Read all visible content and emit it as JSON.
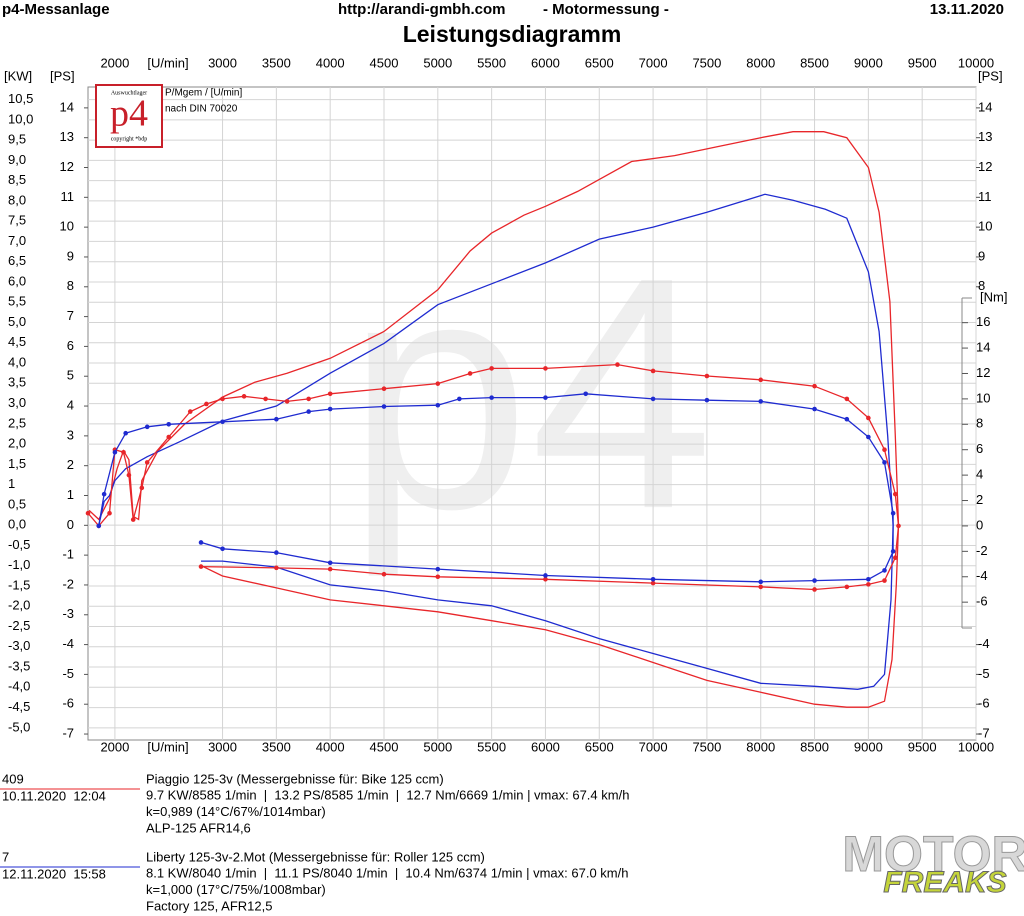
{
  "chart_data": {
    "type": "line",
    "title": "Leistungsdiagramm",
    "header": {
      "left": "p4-Messanlage",
      "url": "http://arandi-gmbh.com",
      "subject": "- Motormessung -",
      "date": "13.11.2020"
    },
    "logo": {
      "top": "Auswuchtlager",
      "mark": "p4",
      "bottom": "copyright *bdp"
    },
    "notes": [
      "P/Mgem / [U/min]",
      "nach DIN 70020"
    ],
    "watermark": "p4",
    "brand": [
      "MOTOR",
      "FREAKS"
    ],
    "x_label": "[U/min]",
    "xlim": [
      1750,
      10000
    ],
    "xticks": [
      2000,
      3000,
      3500,
      4000,
      4500,
      5000,
      5500,
      6000,
      6500,
      7000,
      7500,
      8000,
      8500,
      9000,
      9500,
      10000
    ],
    "grid": true,
    "kw_axis": {
      "label": "[KW]",
      "lim": [
        -5.3,
        10.81
      ],
      "ticks": [
        {
          "value": 10.5,
          "label": "10,5"
        },
        {
          "value": 10,
          "label": "10,0"
        },
        {
          "value": 9.5,
          "label": "9,5"
        },
        {
          "value": 9,
          "label": "9,0"
        },
        {
          "value": 8.5,
          "label": "8,5"
        },
        {
          "value": 8,
          "label": "8,0"
        },
        {
          "value": 7.5,
          "label": "7,5"
        },
        {
          "value": 7,
          "label": "7,0"
        },
        {
          "value": 6.5,
          "label": "6,5"
        },
        {
          "value": 6,
          "label": "6,0"
        },
        {
          "value": 5.5,
          "label": "5,5"
        },
        {
          "value": 5,
          "label": "5,0"
        },
        {
          "value": 4.5,
          "label": "4,5"
        },
        {
          "value": 4,
          "label": "4,0"
        },
        {
          "value": 3.5,
          "label": "3,5"
        },
        {
          "value": 3,
          "label": "3,0"
        },
        {
          "value": 2.5,
          "label": "2,5"
        },
        {
          "value": 2,
          "label": "2,0"
        },
        {
          "value": 1.5,
          "label": "1,5"
        },
        {
          "value": 1,
          "label": "1"
        },
        {
          "value": 0.5,
          "label": "0,5"
        },
        {
          "value": 0,
          "label": "0,0"
        },
        {
          "value": -0.5,
          "label": "-0,5"
        },
        {
          "value": -1,
          "label": "-1,0"
        },
        {
          "value": -1.5,
          "label": "-1,5"
        },
        {
          "value": -2,
          "label": "-2,0"
        },
        {
          "value": -2.5,
          "label": "-2,5"
        },
        {
          "value": -3,
          "label": "-3,0"
        },
        {
          "value": -3.5,
          "label": "-3,5"
        },
        {
          "value": -4,
          "label": "-4,0"
        },
        {
          "value": -4.5,
          "label": "-4,5"
        },
        {
          "value": -5,
          "label": "-5,0"
        }
      ]
    },
    "ps_axis": {
      "label": "[PS]",
      "lim": [
        -7.2,
        14.7
      ],
      "ticks": [
        14,
        13,
        12,
        11,
        10,
        9,
        8,
        7,
        6,
        5,
        4,
        3,
        2,
        1,
        0,
        -1,
        -2,
        -3,
        -4,
        -5,
        -6,
        -7
      ]
    },
    "nm_axis": {
      "label": "[Nm]",
      "lim": [
        -16.85,
        34.55
      ],
      "ticks": [
        16,
        14,
        12,
        10,
        8,
        6,
        4,
        2,
        0,
        -2,
        -4,
        -6
      ]
    },
    "series": [
      {
        "color": "#e8262a",
        "axis": "ps",
        "markers": false,
        "x": [
          1760,
          1850,
          1950,
          2020,
          2080,
          2130,
          2170,
          2220,
          2250,
          2400,
          2650,
          3000,
          3300,
          3600,
          4000,
          4500,
          5000,
          5300,
          5500,
          5800,
          6000,
          6300,
          6500,
          6800,
          7200,
          7600,
          8000,
          8300,
          8585,
          8800,
          9000,
          9100,
          9200,
          9250,
          9280,
          9260,
          9220,
          9150,
          9000,
          8800,
          8500,
          8000,
          7500,
          7000,
          6500,
          6000,
          5500,
          5000,
          4500,
          4000,
          3500,
          3000,
          2800
        ],
        "values": [
          0.5,
          0.2,
          0.9,
          1.9,
          2.5,
          2.2,
          0.3,
          0.2,
          1.5,
          2.5,
          3.4,
          4.3,
          4.8,
          5.1,
          5.6,
          6.5,
          7.9,
          9.2,
          9.8,
          10.4,
          10.7,
          11.2,
          11.6,
          12.2,
          12.4,
          12.7,
          13.0,
          13.2,
          13.2,
          13.0,
          12.0,
          10.5,
          7.5,
          3.0,
          0.0,
          -2.0,
          -4.5,
          -5.9,
          -6.1,
          -6.1,
          -6.0,
          -5.6,
          -5.2,
          -4.6,
          -4.0,
          -3.5,
          -3.2,
          -2.9,
          -2.7,
          -2.5,
          -2.1,
          -1.7,
          -1.35
        ]
      },
      {
        "color": "#1f2bd0",
        "axis": "ps",
        "markers": false,
        "x": [
          1850,
          1900,
          1950,
          2000,
          2100,
          2300,
          2600,
          3000,
          3500,
          4000,
          4500,
          5000,
          5500,
          6000,
          6500,
          7000,
          7500,
          8040,
          8300,
          8600,
          8800,
          9000,
          9100,
          9180,
          9230,
          9210,
          9150,
          9050,
          8900,
          8500,
          8000,
          7500,
          7000,
          6500,
          6000,
          5500,
          5000,
          4500,
          4000,
          3500,
          3000,
          2800
        ],
        "values": [
          0.0,
          0.8,
          1.0,
          1.5,
          1.9,
          2.3,
          2.8,
          3.5,
          4.0,
          5.1,
          6.1,
          7.4,
          8.1,
          8.8,
          9.6,
          10.0,
          10.5,
          11.1,
          10.9,
          10.6,
          10.3,
          8.5,
          6.5,
          3.0,
          0.0,
          -2.5,
          -5.0,
          -5.4,
          -5.5,
          -5.4,
          -5.3,
          -4.8,
          -4.3,
          -3.8,
          -3.2,
          -2.7,
          -2.5,
          -2.2,
          -2.0,
          -1.4,
          -1.2,
          -1.2
        ]
      },
      {
        "color": "#e8262a",
        "axis": "nm",
        "markers": true,
        "x": [
          1750,
          1850,
          1950,
          2000,
          2080,
          2130,
          2170,
          2250,
          2300,
          2500,
          2700,
          2850,
          3000,
          3200,
          3400,
          3600,
          3800,
          4000,
          4500,
          5000,
          5300,
          5500,
          6000,
          6669,
          7000,
          7500,
          8000,
          8500,
          8800,
          9000,
          9150,
          9250,
          9280,
          9250,
          9150,
          9000,
          8800,
          8500,
          8000,
          7000,
          6000,
          5000,
          4500,
          4000,
          3500,
          2800
        ],
        "values": [
          1.0,
          0.0,
          1.0,
          6.0,
          5.8,
          4.0,
          0.5,
          3.0,
          5.0,
          7.0,
          9.0,
          9.6,
          10.0,
          10.2,
          10.0,
          9.8,
          10.0,
          10.4,
          10.8,
          11.2,
          12.0,
          12.4,
          12.4,
          12.7,
          12.2,
          11.8,
          11.5,
          11.0,
          10.0,
          8.5,
          6.0,
          2.5,
          0.0,
          -2.5,
          -4.3,
          -4.6,
          -4.8,
          -5.0,
          -4.8,
          -4.5,
          -4.2,
          -4.0,
          -3.8,
          -3.4,
          -3.3,
          -3.2
        ]
      },
      {
        "color": "#1f2bd0",
        "axis": "nm",
        "markers": true,
        "x": [
          1850,
          1900,
          2000,
          2100,
          2300,
          2500,
          3000,
          3500,
          3800,
          4000,
          4500,
          5000,
          5200,
          5500,
          6000,
          6374,
          7000,
          7500,
          8000,
          8500,
          8800,
          9000,
          9150,
          9230,
          9230,
          9150,
          9000,
          8500,
          8000,
          7000,
          6000,
          5000,
          4000,
          3500,
          3000,
          2800
        ],
        "values": [
          0.0,
          2.5,
          5.8,
          7.3,
          7.8,
          8.0,
          8.2,
          8.4,
          9.0,
          9.2,
          9.4,
          9.5,
          10.0,
          10.1,
          10.1,
          10.4,
          10.0,
          9.9,
          9.8,
          9.2,
          8.4,
          7.0,
          5.0,
          1.0,
          -2.0,
          -3.5,
          -4.2,
          -4.3,
          -4.4,
          -4.2,
          -3.9,
          -3.4,
          -2.9,
          -2.1,
          -1.8,
          -1.3
        ]
      }
    ],
    "runs": [
      {
        "id": "409",
        "date": "10.11.2020  12:04",
        "color": "#e8262a",
        "lines": [
          "Piaggio 125-3v (Messergebnisse für: Bike 125 ccm)",
          "9.7 KW/8585 1/min  |  13.2 PS/8585 1/min  |  12.7 Nm/6669 1/min | vmax: 67.4 km/h",
          "k=0,989 (14°C/67%/1014mbar)",
          "ALP-125 AFR14,6"
        ]
      },
      {
        "id": "7",
        "date": "12.11.2020  15:58",
        "color": "#1f2bd0",
        "lines": [
          "Liberty 125-3v-2.Mot (Messergebnisse für: Roller 125 ccm)",
          "8.1 KW/8040 1/min  |  11.1 PS/8040 1/min  |  10.4 Nm/6374 1/min | vmax: 67.0 km/h",
          "k=1,000 (17°C/75%/1008mbar)",
          "Factory 125, AFR12,5"
        ]
      }
    ]
  }
}
